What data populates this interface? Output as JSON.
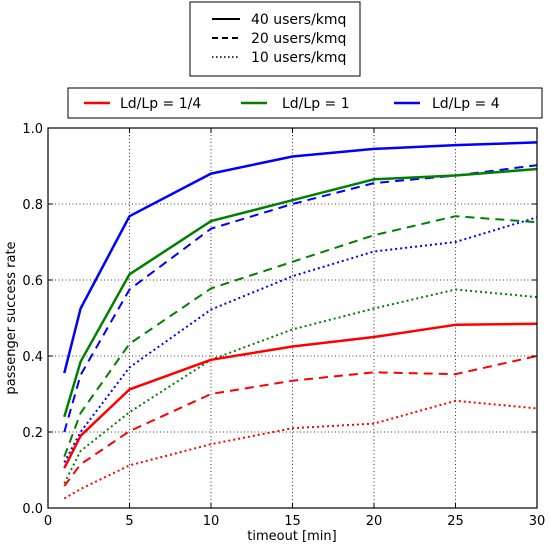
{
  "chart_data": {
    "type": "line",
    "xlabel": "timeout [min]",
    "ylabel": "passenger success rate",
    "xlim": [
      0,
      30
    ],
    "ylim": [
      0,
      1.0
    ],
    "xticks": [
      0,
      5,
      10,
      15,
      20,
      25,
      30
    ],
    "yticks": [
      0.0,
      0.2,
      0.4,
      0.6,
      0.8,
      1.0
    ],
    "xtick_labels": [
      "0",
      "5",
      "10",
      "15",
      "20",
      "25",
      "30"
    ],
    "ytick_labels": [
      "0.0",
      "0.2",
      "0.4",
      "0.6",
      "0.8",
      "1.0"
    ],
    "grid": true,
    "x": [
      1,
      2,
      5,
      10,
      15,
      20,
      25,
      30
    ],
    "legend_density": {
      "placement": "top-center",
      "entries": [
        {
          "label": "40 users/kmq",
          "style": "solid"
        },
        {
          "label": "20 users/kmq",
          "style": "dashed"
        },
        {
          "label": "10 users/kmq",
          "style": "dotted"
        }
      ]
    },
    "legend_ratio": {
      "placement": "top",
      "entries": [
        {
          "label": "Ld/Lp = 1/4",
          "color": "#ff0000"
        },
        {
          "label": "Ld/Lp = 1",
          "color": "#008000"
        },
        {
          "label": "Ld/Lp = 4",
          "color": "#0000ff"
        }
      ]
    },
    "series": [
      {
        "ratio": "Ld/Lp = 4",
        "density": "40 users/kmq",
        "color": "#0000ff",
        "style": "solid",
        "values": [
          0.355,
          0.525,
          0.768,
          0.88,
          0.925,
          0.945,
          0.955,
          0.962
        ]
      },
      {
        "ratio": "Ld/Lp = 4",
        "density": "20 users/kmq",
        "color": "#0000ff",
        "style": "dashed",
        "values": [
          0.2,
          0.35,
          0.575,
          0.735,
          0.8,
          0.855,
          0.875,
          0.902
        ]
      },
      {
        "ratio": "Ld/Lp = 4",
        "density": "10 users/kmq",
        "color": "#0000ff",
        "style": "dotted",
        "values": [
          0.12,
          0.2,
          0.37,
          0.522,
          0.61,
          0.675,
          0.7,
          0.765
        ]
      },
      {
        "ratio": "Ld/Lp = 1",
        "density": "40 users/kmq",
        "color": "#008000",
        "style": "solid",
        "values": [
          0.24,
          0.385,
          0.615,
          0.755,
          0.81,
          0.865,
          0.875,
          0.892
        ]
      },
      {
        "ratio": "Ld/Lp = 1",
        "density": "20 users/kmq",
        "color": "#008000",
        "style": "dashed",
        "values": [
          0.135,
          0.25,
          0.432,
          0.578,
          0.648,
          0.718,
          0.768,
          0.752
        ]
      },
      {
        "ratio": "Ld/Lp = 1",
        "density": "10 users/kmq",
        "color": "#008000",
        "style": "dotted",
        "values": [
          0.065,
          0.15,
          0.252,
          0.39,
          0.47,
          0.525,
          0.575,
          0.555
        ]
      },
      {
        "ratio": "Ld/Lp = 1/4",
        "density": "40 users/kmq",
        "color": "#ff0000",
        "style": "solid",
        "values": [
          0.105,
          0.19,
          0.312,
          0.39,
          0.425,
          0.45,
          0.482,
          0.485
        ]
      },
      {
        "ratio": "Ld/Lp = 1/4",
        "density": "20 users/kmq",
        "color": "#ff0000",
        "style": "dashed",
        "values": [
          0.058,
          0.115,
          0.202,
          0.3,
          0.335,
          0.357,
          0.352,
          0.4
        ]
      },
      {
        "ratio": "Ld/Lp = 1/4",
        "density": "10 users/kmq",
        "color": "#ff0000",
        "style": "dotted",
        "values": [
          0.025,
          0.05,
          0.112,
          0.168,
          0.21,
          0.222,
          0.282,
          0.262
        ]
      }
    ]
  }
}
